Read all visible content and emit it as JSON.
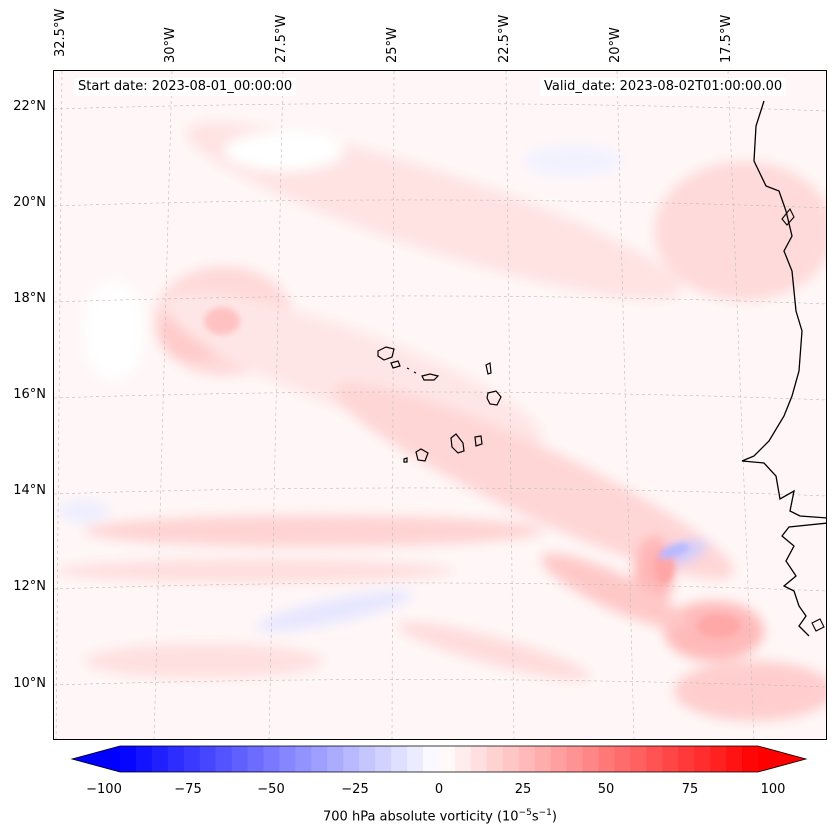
{
  "map": {
    "title_left": "Start date: 2023-08-01_00:00:00",
    "title_right": "Valid_date: 2023-08-02T01:00:00.00",
    "longitude_labels": [
      "32.5°W",
      "30°W",
      "27.5°W",
      "25°W",
      "22.5°W",
      "20°W",
      "17.5°W"
    ],
    "latitude_labels": [
      "22°N",
      "20°N",
      "18°N",
      "16°N",
      "14°N",
      "12°N",
      "10°N"
    ],
    "features": [
      "Cape Verde islands",
      "West African coastline"
    ],
    "colors": {
      "frame": "#000000",
      "coastline": "#000000",
      "gridline": "#cccccc",
      "background_field": "#fff6f6"
    }
  },
  "colorbar": {
    "label": "700 hPa absolute vorticity (10",
    "label_exp1": "−5",
    "label_mid": "s",
    "label_exp2": "−1",
    "label_end": ")",
    "min": -100,
    "max": 100,
    "ticks": [
      "−100",
      "−75",
      "−50",
      "−25",
      "0",
      "25",
      "50",
      "75",
      "100"
    ],
    "colors": {
      "low": "#0000ff",
      "mid": "#ffffff",
      "high": "#ff0000"
    }
  }
}
